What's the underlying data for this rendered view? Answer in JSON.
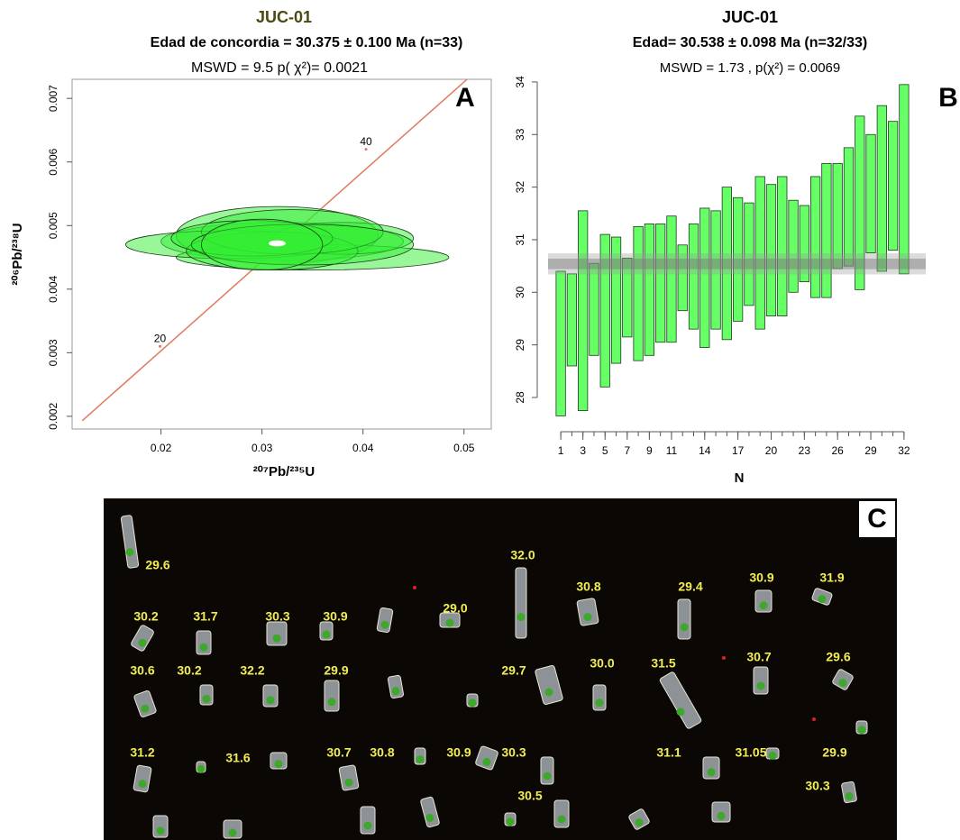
{
  "chart_data": [
    {
      "type": "concordia",
      "panel_label": "A",
      "title": "JUC-01",
      "subtitle": "Edad de concordia = 30.375 ± 0.100 Ma (n=33)",
      "annotation": "MSWD = 9.5  p( χ²)= 0.0021",
      "x_label": "²⁰⁷Pb/²³⁵U",
      "y_label": "²⁰⁶Pb/²³⁸U",
      "xlim": [
        0.0112,
        0.0527
      ],
      "ylim": [
        0.0018,
        0.0073
      ],
      "xticks": [
        0.02,
        0.03,
        0.04,
        0.05
      ],
      "yticks": [
        0.002,
        0.003,
        0.004,
        0.005,
        0.006,
        0.007
      ],
      "color": "#33ee33",
      "concordia_color": "#e07a5f",
      "concordia": {
        "x": [
          0.0122,
          0.0503
        ],
        "values": [
          0.00193,
          0.0073
        ]
      },
      "concordia_ticks": [
        {
          "value": 20,
          "x": 0.0199,
          "y": 0.0031
        },
        {
          "value": 40,
          "x": 0.0403,
          "y": 0.0062
        }
      ],
      "x": [
        0.032,
        0.0315,
        0.035,
        0.027,
        0.038,
        0.031,
        0.033,
        0.029,
        0.034,
        0.03
      ],
      "values": [
        0.00475,
        0.00485,
        0.0045,
        0.0047,
        0.0048,
        0.0046,
        0.0049,
        0.0048,
        0.0047,
        0.0047
      ],
      "x_radius": [
        0.012,
        0.01,
        0.0135,
        0.0105,
        0.007,
        0.0085,
        0.009,
        0.008,
        0.011,
        0.006
      ],
      "y_radius": [
        0.0003,
        0.00045,
        0.0002,
        0.00022,
        0.00025,
        0.0003,
        0.00035,
        0.00028,
        0.00032,
        0.0004
      ],
      "mean": {
        "x": 0.0315,
        "y": 0.00472,
        "x_radius": 0.0008,
        "y_radius": 4e-05
      }
    },
    {
      "type": "range",
      "panel_label": "B",
      "title": "JUC-01",
      "subtitle": "Edad= 30.538 ± 0.098 Ma (n=32/33)",
      "annotation": "MSWD = 1.73 , p(χ²) = 0.0069",
      "x_label": "N",
      "xlim": [
        -0.8,
        33.8
      ],
      "ylim": [
        27.4,
        34.05
      ],
      "xticks": [
        1,
        3,
        5,
        7,
        9,
        11,
        14,
        17,
        20,
        23,
        26,
        29,
        32
      ],
      "yticks": [
        28,
        29,
        30,
        31,
        32,
        33,
        34
      ],
      "color": "#66ff66",
      "x": [
        1,
        2,
        3,
        4,
        5,
        6,
        7,
        8,
        9,
        10,
        11,
        12,
        13,
        14,
        15,
        16,
        17,
        18,
        19,
        20,
        21,
        22,
        23,
        24,
        25,
        26,
        27,
        28,
        29,
        30,
        31,
        32
      ],
      "low": [
        27.65,
        28.6,
        27.75,
        28.8,
        28.2,
        28.65,
        29.15,
        28.7,
        28.8,
        29.05,
        29.05,
        29.65,
        29.3,
        28.95,
        29.3,
        29.1,
        29.45,
        29.75,
        29.3,
        29.55,
        29.55,
        30.0,
        30.2,
        29.9,
        29.9,
        30.45,
        30.5,
        30.05,
        30.75,
        30.4,
        30.8,
        30.35
      ],
      "high": [
        30.4,
        30.35,
        31.55,
        30.55,
        31.1,
        31.05,
        30.65,
        31.25,
        31.3,
        31.3,
        31.45,
        30.9,
        31.3,
        31.6,
        31.55,
        32.0,
        31.8,
        31.7,
        32.2,
        32.05,
        32.2,
        31.75,
        31.65,
        32.2,
        32.45,
        32.45,
        32.75,
        33.35,
        33.0,
        33.55,
        33.25,
        33.95
      ],
      "outer_band": {
        "low": 30.34,
        "high": 30.74
      },
      "mean_band": {
        "low": 30.44,
        "high": 30.64
      }
    }
  ],
  "image_panel": {
    "panel_label": "C",
    "labels": [
      "29.6",
      "30.2",
      "31.7",
      "30.3",
      "30.9",
      "29.0",
      "32.0",
      "30.8",
      "29.4",
      "30.9",
      "31.9",
      "30.6",
      "30.2",
      "32.2",
      "29.9",
      "29.7",
      "30.0",
      "31.5",
      "30.7",
      "29.6",
      "31.2",
      "31.6",
      "30.7",
      "30.8",
      "30.9",
      "30.3",
      "31.1",
      "31.05",
      "29.9",
      "30.5",
      "30.3"
    ]
  }
}
